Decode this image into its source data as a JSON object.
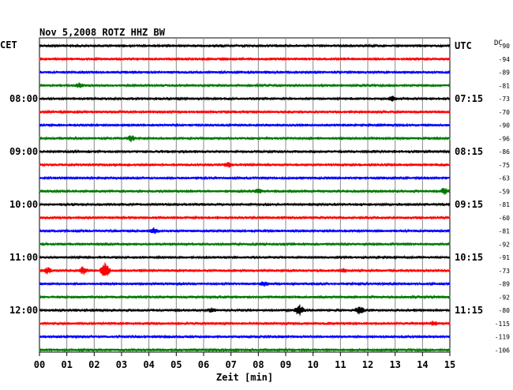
{
  "chart_data": {
    "type": "line",
    "title": "Nov 5,2008  ROTZ HHZ BW",
    "left_tz": "CET",
    "right_tz": "UTC",
    "dc_label": "DC",
    "xlabel": "Zeit [min]",
    "x_ticks": [
      "00",
      "01",
      "02",
      "03",
      "04",
      "05",
      "06",
      "07",
      "08",
      "09",
      "10",
      "11",
      "12",
      "13",
      "14",
      "15"
    ],
    "xlim": [
      0,
      15
    ],
    "grid": true,
    "trace_colors": [
      "#000000",
      "#ff0000",
      "#0000ff",
      "#007700"
    ],
    "left_hour_labels": [
      {
        "trace": 4,
        "label": "08:00"
      },
      {
        "trace": 8,
        "label": "09:00"
      },
      {
        "trace": 12,
        "label": "10:00"
      },
      {
        "trace": 16,
        "label": "11:00"
      },
      {
        "trace": 20,
        "label": "12:00"
      }
    ],
    "right_hour_labels": [
      {
        "trace": 0,
        "label": "UTC"
      },
      {
        "trace": 4,
        "label": "07:15"
      },
      {
        "trace": 8,
        "label": "08:15"
      },
      {
        "trace": 12,
        "label": "09:15"
      },
      {
        "trace": 16,
        "label": "10:15"
      },
      {
        "trace": 20,
        "label": "11:15"
      }
    ],
    "dc_offsets": [
      "-90",
      "-94",
      "-89",
      "-81",
      "-73",
      "-70",
      "-90",
      "-96",
      "-86",
      "-75",
      "-63",
      "-59",
      "-81",
      "-60",
      "-81",
      "-92",
      "-91",
      "-73",
      "-89",
      "-92",
      "-80",
      "-115",
      "-119",
      "-106"
    ],
    "events": [
      {
        "trace": 3,
        "minute": 1.45,
        "amp": 3
      },
      {
        "trace": 4,
        "minute": 12.9,
        "amp": 3
      },
      {
        "trace": 7,
        "minute": 3.35,
        "amp": 4
      },
      {
        "trace": 9,
        "minute": 6.9,
        "amp": 3
      },
      {
        "trace": 11,
        "minute": 8.0,
        "amp": 3
      },
      {
        "trace": 11,
        "minute": 14.8,
        "amp": 4
      },
      {
        "trace": 14,
        "minute": 4.2,
        "amp": 4
      },
      {
        "trace": 17,
        "minute": 0.3,
        "amp": 4
      },
      {
        "trace": 17,
        "minute": 1.6,
        "amp": 5
      },
      {
        "trace": 17,
        "minute": 2.4,
        "amp": 10
      },
      {
        "trace": 17,
        "minute": 11.1,
        "amp": 3
      },
      {
        "trace": 18,
        "minute": 8.2,
        "amp": 3
      },
      {
        "trace": 20,
        "minute": 6.3,
        "amp": 3
      },
      {
        "trace": 20,
        "minute": 9.5,
        "amp": 7
      },
      {
        "trace": 20,
        "minute": 11.7,
        "amp": 5
      },
      {
        "trace": 21,
        "minute": 14.4,
        "amp": 3
      }
    ]
  }
}
